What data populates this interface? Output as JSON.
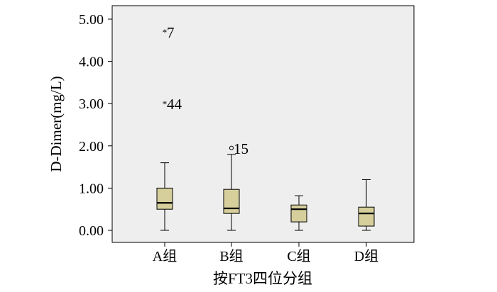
{
  "chart_data": {
    "type": "box",
    "title": "",
    "xlabel": "按FT3四位分组",
    "ylabel": "D-Dimer(mg/L)",
    "ylim": [
      -0.28,
      5.3
    ],
    "y_ticks": [
      "0.00",
      "1.00",
      "2.00",
      "3.00",
      "4.00",
      "5.00"
    ],
    "y_tick_values": [
      0,
      1,
      2,
      3,
      4,
      5
    ],
    "grid": false,
    "colors": {
      "plot_bg": "#eeeeee",
      "box_fill": "#d6cf9c",
      "stroke": "#000000"
    },
    "categories": [
      "A组",
      "B组",
      "C组",
      "D组"
    ],
    "boxes": [
      {
        "min": 0.0,
        "q1": 0.5,
        "median": 0.65,
        "q3": 1.0,
        "max": 1.6
      },
      {
        "min": 0.0,
        "q1": 0.4,
        "median": 0.52,
        "q3": 0.97,
        "max": 1.8
      },
      {
        "min": 0.0,
        "q1": 0.2,
        "median": 0.5,
        "q3": 0.6,
        "max": 0.82
      },
      {
        "min": 0.0,
        "q1": 0.1,
        "median": 0.4,
        "q3": 0.55,
        "max": 1.2
      }
    ],
    "outliers": [
      {
        "category": "A组",
        "value": 4.7,
        "label": "7",
        "marker": "star"
      },
      {
        "category": "A组",
        "value": 3.0,
        "label": "44",
        "marker": "star"
      },
      {
        "category": "B组",
        "value": 1.95,
        "label": "15",
        "marker": "circle"
      }
    ]
  }
}
